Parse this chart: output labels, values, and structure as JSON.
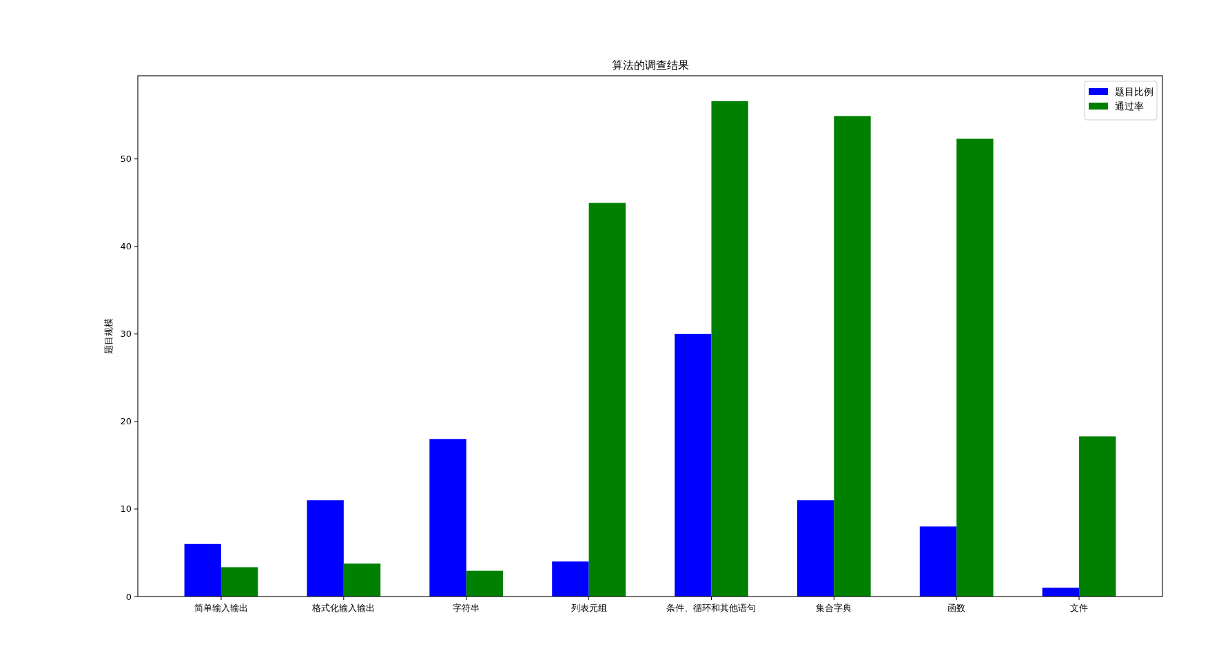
{
  "chart_data": {
    "type": "bar",
    "title": "算法的调查结果",
    "ylabel": "题目规模",
    "categories": [
      "简单输入输出",
      "格式化输入输出",
      "字符串",
      "列表元组",
      "条件、循环和其他语句",
      "集合字典",
      "函数",
      "文件"
    ],
    "series": [
      {
        "name": "题目比例",
        "color": "#0000ff",
        "values": [
          6,
          11,
          18,
          4,
          30,
          11,
          8,
          1
        ]
      },
      {
        "name": "通过率",
        "color": "#008000",
        "values": [
          3.35,
          3.76,
          2.94,
          44.97,
          56.6,
          54.9,
          52.3,
          18.3
        ]
      }
    ],
    "ylim": [
      0,
      59.5
    ],
    "yticks": [
      0,
      10,
      20,
      30,
      40,
      50
    ],
    "grid": false,
    "legend": "top right"
  }
}
